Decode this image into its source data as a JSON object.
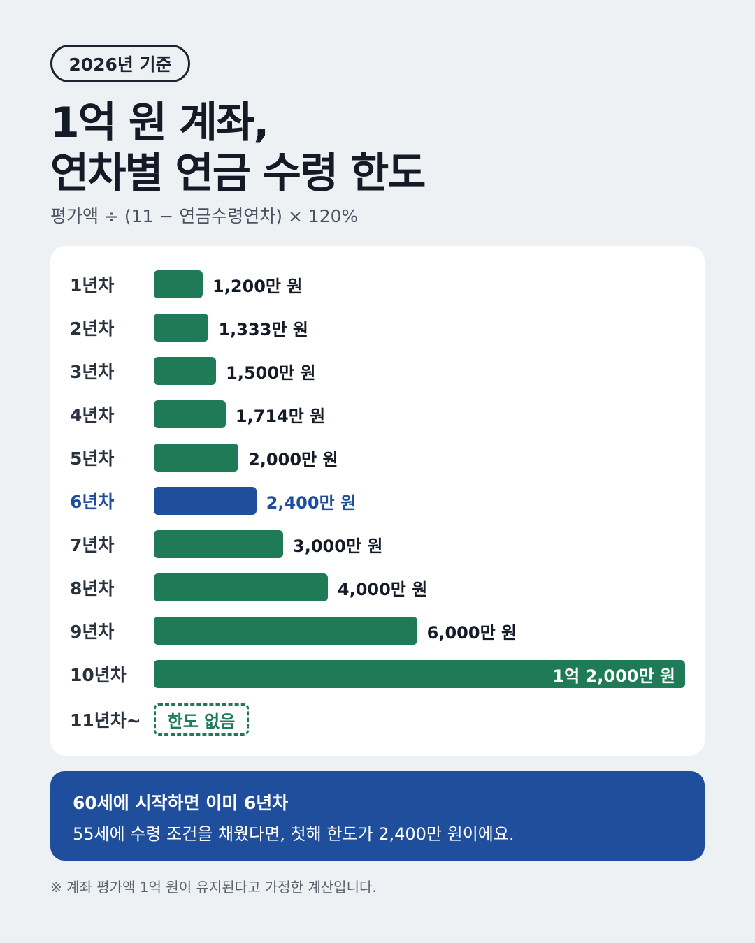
{
  "badge": "2026년 기준",
  "title_line1": "1억 원 계좌,",
  "title_line2": "연차별 연금 수령 한도",
  "formula": "평가액 ÷ (11 − 연금수령연차) × 120%",
  "colors": {
    "bar_default": "#1f7a58",
    "bar_highlight": "#1f4f9c",
    "highlight_text": "#1f4f9c",
    "callout_bg": "#1f4f9c"
  },
  "chart_data": {
    "type": "bar",
    "orientation": "horizontal",
    "categories": [
      "1년차",
      "2년차",
      "3년차",
      "4년차",
      "5년차",
      "6년차",
      "7년차",
      "8년차",
      "9년차",
      "10년차"
    ],
    "values": [
      1200,
      1333,
      1500,
      1714,
      2000,
      2400,
      3000,
      4000,
      6000,
      12000
    ],
    "value_labels": [
      "1,200만 원",
      "1,333만 원",
      "1,500만 원",
      "1,714만 원",
      "2,000만 원",
      "2,400만 원",
      "3,000만 원",
      "4,000만 원",
      "6,000만 원",
      "1억 2,000만 원"
    ],
    "highlight_index": 5,
    "extra_row": {
      "label": "11년차~",
      "value_text": "한도 없음"
    },
    "xlim": [
      0,
      12000
    ],
    "grid": false,
    "legend": "none"
  },
  "callout": {
    "title": "60세에 시작하면 이미 6년차",
    "body": "55세에 수령 조건을 채웠다면, 첫해 한도가 2,400만 원이에요."
  },
  "footnote": "※ 계좌 평가액 1억 원이 유지된다고 가정한 계산입니다."
}
